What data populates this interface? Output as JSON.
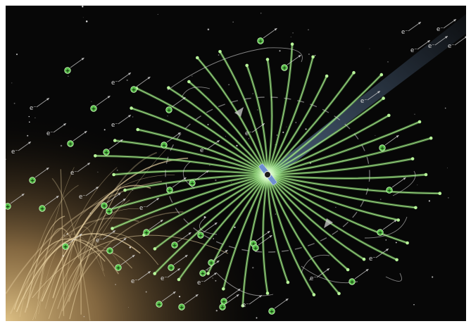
{
  "scene": {
    "description_free": true,
    "electron_symbol": "e⁻",
    "proton_symbol": "+",
    "colors": {
      "space": "#070707",
      "sun_glow": "#c9a46a",
      "wire": "#7fcf6a",
      "wire_tip": "#b8f59a",
      "proton": "#58c24a",
      "electron_text": "#dcdcdc",
      "trail": "#d8d8d8",
      "beam": "#7fa6d6"
    }
  }
}
